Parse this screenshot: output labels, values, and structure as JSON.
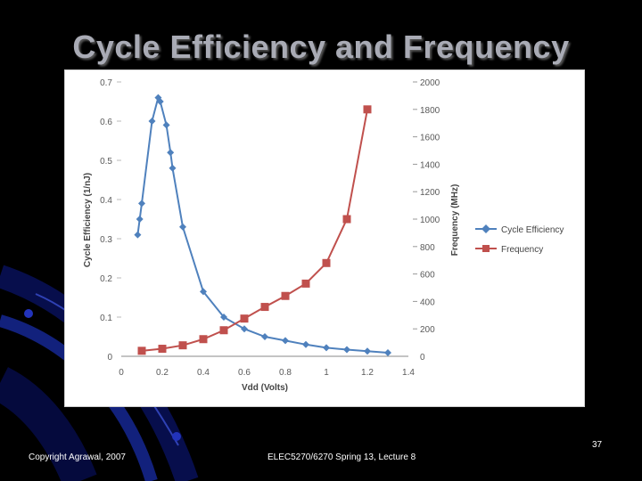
{
  "slide": {
    "title": "Cycle Efficiency and Frequency",
    "footer_left": "Copyright Agrawal, 2007",
    "footer_center": "ELEC5270/6270 Spring 13, Lecture 8",
    "page_number": "37"
  },
  "colors": {
    "background": "#000000",
    "title": "#a9abb5",
    "efficiency_series": "#4f81bd",
    "frequency_series": "#c0504d",
    "decor_blue": "#1a2fb0"
  },
  "chart_data": {
    "type": "line",
    "title": "",
    "xlabel": "Vdd (Volts)",
    "ylabel": "Cycle Efficiency (1/nJ)",
    "y2label": "Frequency (MHz)",
    "xlim": [
      0,
      1.4
    ],
    "ylim": [
      0,
      0.7
    ],
    "y2lim": [
      0,
      2000
    ],
    "x_ticks": [
      "0",
      "0.2",
      "0.4",
      "0.6",
      "0.8",
      "1",
      "1.2",
      "1.4"
    ],
    "y_ticks": [
      "0",
      "0.1",
      "0.2",
      "0.3",
      "0.4",
      "0.5",
      "0.6",
      "0.7"
    ],
    "y2_ticks": [
      "0",
      "200",
      "400",
      "600",
      "800",
      "1000",
      "1200",
      "1400",
      "1600",
      "1800",
      "2000"
    ],
    "legend_position": "right",
    "series": [
      {
        "name": "Cycle Efficiency",
        "axis": "left",
        "marker": "diamond",
        "x": [
          0.08,
          0.09,
          0.1,
          0.15,
          0.18,
          0.19,
          0.22,
          0.24,
          0.25,
          0.3,
          0.4,
          0.5,
          0.6,
          0.7,
          0.8,
          0.9,
          1.0,
          1.1,
          1.2,
          1.3
        ],
        "y": [
          0.31,
          0.35,
          0.39,
          0.6,
          0.66,
          0.65,
          0.59,
          0.52,
          0.48,
          0.33,
          0.165,
          0.1,
          0.07,
          0.05,
          0.04,
          0.03,
          0.022,
          0.017,
          0.013,
          0.009
        ]
      },
      {
        "name": "Frequency",
        "axis": "right",
        "marker": "square",
        "x": [
          0.1,
          0.2,
          0.3,
          0.4,
          0.5,
          0.6,
          0.7,
          0.8,
          0.9,
          1.0,
          1.1,
          1.2
        ],
        "y": [
          40,
          55,
          80,
          125,
          190,
          275,
          360,
          440,
          530,
          680,
          1000,
          1800
        ]
      }
    ]
  }
}
